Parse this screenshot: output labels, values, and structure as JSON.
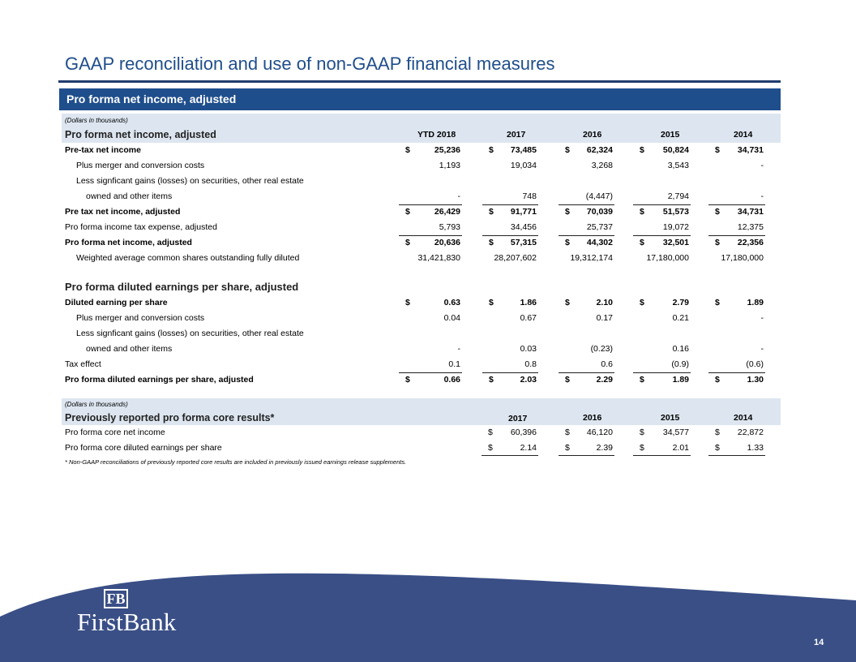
{
  "page": {
    "title": "GAAP reconciliation and use of non-GAAP financial measures",
    "band_label": "Pro forma net income, adjusted",
    "page_number": "14"
  },
  "table1": {
    "note": "(Dollars in thousands)",
    "header": "Pro forma net income, adjusted",
    "cols": [
      "YTD 2018",
      "2017",
      "2016",
      "2015",
      "2014"
    ],
    "rows": [
      {
        "label": "Pre-tax net income",
        "bold": true,
        "dollar": true,
        "vals": [
          "25,236",
          "73,485",
          "62,324",
          "50,824",
          "34,731"
        ]
      },
      {
        "label": "Plus merger and conversion costs",
        "indent": 1,
        "vals": [
          "1,193",
          "19,034",
          "3,268",
          "3,543",
          "-"
        ]
      },
      {
        "label": "Less signficant gains (losses) on securities, other real estate",
        "indent": 1,
        "vals": [
          "",
          "",
          "",
          "",
          ""
        ]
      },
      {
        "label": "owned and other items",
        "indent": 2,
        "vals": [
          "-",
          "748",
          "(4,447)",
          "2,794",
          "-"
        ]
      },
      {
        "label": "Pre tax net income, adjusted",
        "bold": true,
        "dollar": true,
        "vals": [
          "26,429",
          "91,771",
          "70,039",
          "51,573",
          "34,731"
        ]
      },
      {
        "label": "Pro forma income tax expense, adjusted",
        "vals": [
          "5,793",
          "34,456",
          "25,737",
          "19,072",
          "12,375"
        ]
      },
      {
        "label": "Pro forma net income, adjusted",
        "bold": true,
        "dollar": true,
        "vals": [
          "20,636",
          "57,315",
          "44,302",
          "32,501",
          "22,356"
        ]
      },
      {
        "label": "Weighted average common shares outstanding fully diluted",
        "indent": 1,
        "vals": [
          "31,421,830",
          "28,207,602",
          "19,312,174",
          "17,180,000",
          "17,180,000"
        ]
      }
    ]
  },
  "table2": {
    "header": "Pro forma diluted earnings per share, adjusted",
    "rows": [
      {
        "label": "Diluted earning per share",
        "bold": true,
        "dollar": true,
        "vals": [
          "0.63",
          "1.86",
          "2.10",
          "2.79",
          "1.89"
        ]
      },
      {
        "label": "Plus merger and conversion costs",
        "indent": 1,
        "vals": [
          "0.04",
          "0.67",
          "0.17",
          "0.21",
          "-"
        ]
      },
      {
        "label": "Less signficant gains (losses) on securities, other real estate",
        "indent": 1,
        "vals": [
          "",
          "",
          "",
          "",
          ""
        ]
      },
      {
        "label": "owned and other items",
        "indent": 2,
        "vals": [
          "-",
          "0.03",
          "(0.23)",
          "0.16",
          "-"
        ]
      },
      {
        "label": "Tax effect",
        "vals": [
          "0.1",
          "0.8",
          "0.6",
          "(0.9)",
          "(0.6)"
        ]
      },
      {
        "label": "Pro forma diluted earnings per share, adjusted",
        "bold": true,
        "dollar": true,
        "vals": [
          "0.66",
          "2.03",
          "2.29",
          "1.89",
          "1.30"
        ]
      }
    ]
  },
  "table3": {
    "note": "(Dollars in thousands)",
    "header": "Previously reported pro forma core results*",
    "cols": [
      "2017",
      "2016",
      "2015",
      "2014"
    ],
    "rows": [
      {
        "label": "Pro forma core net income",
        "vals": [
          "60,396",
          "46,120",
          "34,577",
          "22,872"
        ]
      },
      {
        "label": "Pro forma core diluted earnings per share",
        "vals": [
          "2.14",
          "2.39",
          "2.01",
          "1.33"
        ]
      }
    ],
    "footnote": "* Non-GAAP reconciliations of previously reported core results are included in previously issued earnings release supplements."
  },
  "symbols": {
    "dollar": "$"
  },
  "logo": {
    "monogram": "FB",
    "name": "FirstBank"
  },
  "colors": {
    "navy": "#1f4e8c",
    "header_bg": "#dde6f0",
    "footer": "#3a4f86"
  }
}
